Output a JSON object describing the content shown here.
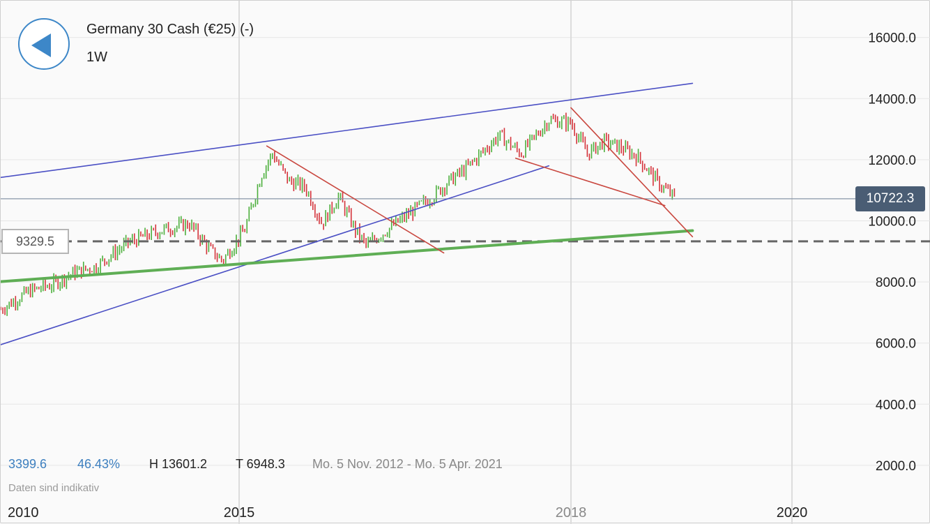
{
  "header": {
    "title": "Germany 30 Cash (€25) (-)",
    "timeframe": "1W"
  },
  "stats": {
    "change_points": "3399.6",
    "change_percent": "46.43%",
    "high": "H 13601.2",
    "low": "T 6948.3",
    "date_range": "Mo. 5 Nov. 2012 - Mo. 5 Apr. 2021"
  },
  "disclaimer": "Daten sind indikativ",
  "price_label": "10722.3",
  "level_label": "9329.5",
  "colors": {
    "up": "#4caf3c",
    "down": "#d4333a",
    "blue_line": "#4a4fc4",
    "red_line": "#c9473f",
    "green_line": "#5fae55",
    "dashed_level": "#666666",
    "current_price_line": "#8896a8",
    "accent": "#3d87c8"
  },
  "chart_data": {
    "type": "candlestick",
    "title": "Germany 30 Cash (€25) (-)",
    "timeframe": "1W",
    "x_ticks": [
      "2010",
      "2015",
      "2018",
      "2020"
    ],
    "y_ticks": [
      "16000.0",
      "14000.0",
      "12000.0",
      "10000.0",
      "8000.0",
      "6000.0",
      "4000.0",
      "2000.0"
    ],
    "ylim": [
      1300,
      17000
    ],
    "grid": true,
    "current_price": 10722.3,
    "horizontal_level": 9329.5,
    "close_path": [
      [
        2012.84,
        7100
      ],
      [
        2013.1,
        7700
      ],
      [
        2013.3,
        7900
      ],
      [
        2013.5,
        8300
      ],
      [
        2013.7,
        8500
      ],
      [
        2014.0,
        9300
      ],
      [
        2014.3,
        9700
      ],
      [
        2014.55,
        9900
      ],
      [
        2014.75,
        9000
      ],
      [
        2014.85,
        8700
      ],
      [
        2015.05,
        9700
      ],
      [
        2015.2,
        11500
      ],
      [
        2015.3,
        12200
      ],
      [
        2015.45,
        11300
      ],
      [
        2015.6,
        11100
      ],
      [
        2015.75,
        9900
      ],
      [
        2015.9,
        10800
      ],
      [
        2016.05,
        9700
      ],
      [
        2016.15,
        9200
      ],
      [
        2016.45,
        10000
      ],
      [
        2016.75,
        10800
      ],
      [
        2016.9,
        11300
      ],
      [
        2017.05,
        11700
      ],
      [
        2017.35,
        12800
      ],
      [
        2017.55,
        12200
      ],
      [
        2017.8,
        13300
      ],
      [
        2018.0,
        13200
      ],
      [
        2018.15,
        12200
      ],
      [
        2018.3,
        12600
      ],
      [
        2018.45,
        12400
      ],
      [
        2018.6,
        12100
      ],
      [
        2018.8,
        11200
      ],
      [
        2018.95,
        10722.3
      ]
    ],
    "trend_lines": [
      {
        "type": "channel-upper",
        "from": [
          2012.8,
          11400
        ],
        "to": [
          2019.1,
          14500
        ]
      },
      {
        "type": "channel-lower",
        "from": [
          2012.8,
          5900
        ],
        "to": [
          2017.8,
          11800
        ]
      },
      {
        "type": "support",
        "from": [
          2012.8,
          8000
        ],
        "to": [
          2019.1,
          9680
        ]
      },
      {
        "type": "resistance-1",
        "from": [
          2015.25,
          12450
        ],
        "to": [
          2016.85,
          8950
        ]
      },
      {
        "type": "resistance-2",
        "from": [
          2018.0,
          13700
        ],
        "to": [
          2019.1,
          9480
        ]
      },
      {
        "type": "resistance-3",
        "from": [
          2017.5,
          12050
        ],
        "to": [
          2018.85,
          10500
        ]
      }
    ]
  }
}
